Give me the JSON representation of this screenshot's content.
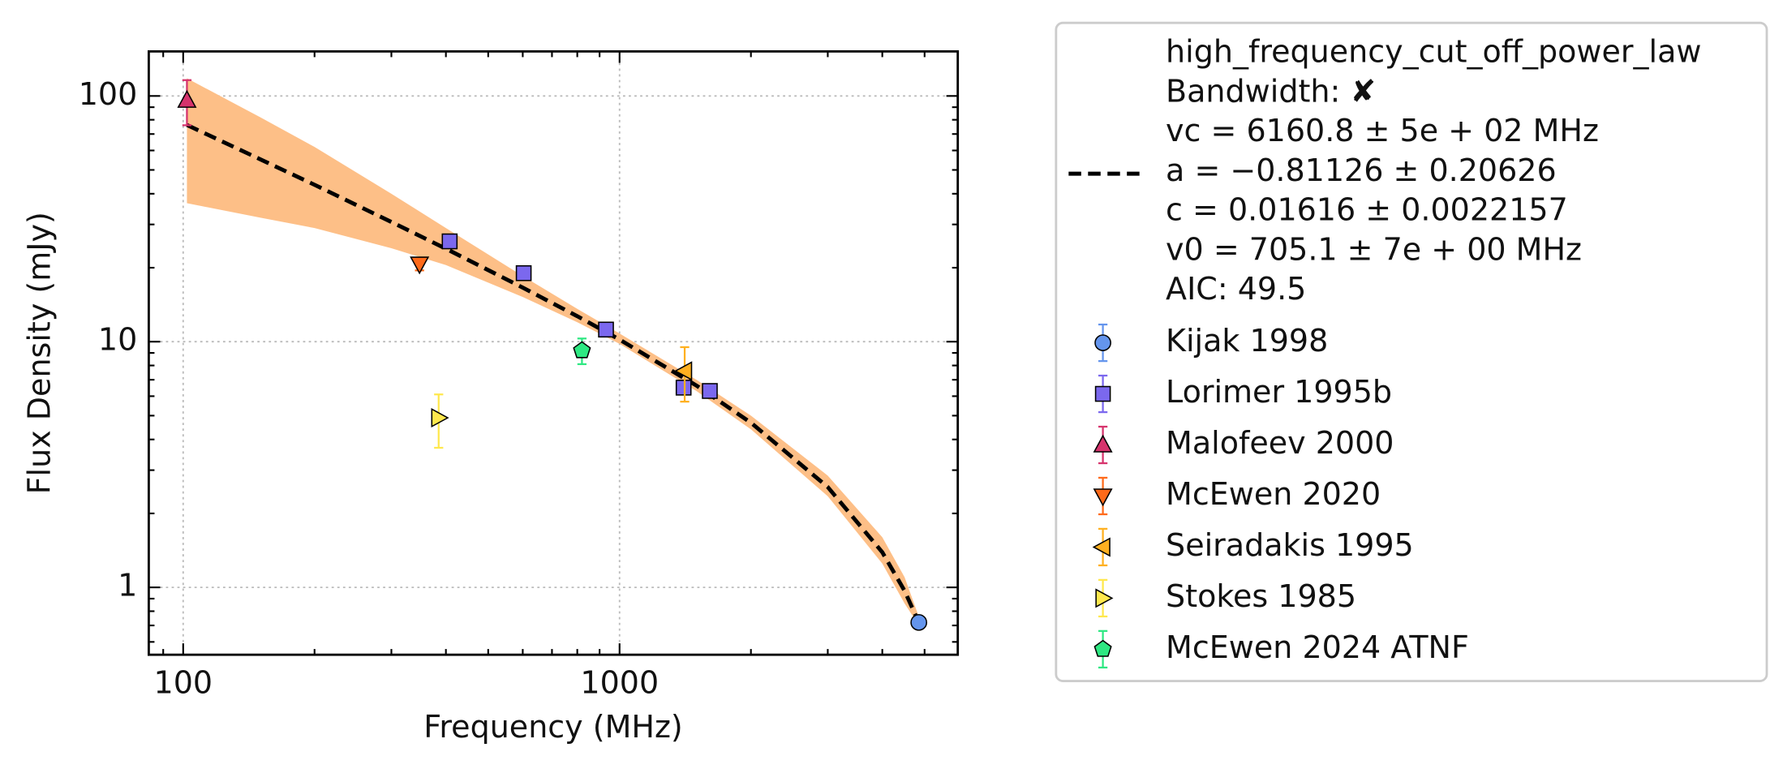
{
  "chart_data": {
    "type": "scatter",
    "xlabel": "Frequency (MHz)",
    "ylabel": "Flux Density (mJy)",
    "xscale": "log",
    "yscale": "log",
    "xlim": [
      83.4,
      5957
    ],
    "ylim": [
      0.532,
      151.8
    ],
    "xticks": [
      100,
      1000
    ],
    "yticks": [
      1,
      10,
      100
    ],
    "xminorticks": [
      90,
      200,
      300,
      400,
      500,
      600,
      700,
      800,
      900,
      2000,
      3000,
      4000,
      5000
    ],
    "yminorticks": [
      0.6,
      0.7,
      0.8,
      0.9,
      2,
      3,
      4,
      5,
      6,
      7,
      8,
      9,
      20,
      30,
      40,
      50,
      60,
      70,
      80,
      90
    ],
    "grid": true,
    "legend": "outside right",
    "fit": {
      "name": [
        "high_frequency_cut_off_power_law",
        "Bandwidth: ✘",
        "vc = 6160.8 ± 5e + 02 MHz",
        "a = −0.81126 ± 0.20626",
        "c = 0.01616 ± 0.0022157",
        "v0 = 705.1 ± 7e + 00 MHz",
        "AIC: 49.5"
      ],
      "color": "#000000",
      "band_color": "#fdbf87",
      "x": [
        102,
        150,
        200,
        300,
        400,
        600,
        800,
        1000,
        1500,
        2000,
        3000,
        4000,
        4500,
        4850
      ],
      "values": [
        76.2,
        55.3,
        43.5,
        30.7,
        23.9,
        16.6,
        12.7,
        10.2,
        6.63,
        4.68,
        2.56,
        1.39,
        0.968,
        0.72
      ],
      "lower": [
        36.6,
        32,
        29,
        24,
        20.5,
        15.2,
        12.0,
        9.8,
        6.3,
        4.4,
        2.35,
        1.25,
        0.86,
        0.7
      ],
      "upper": [
        118,
        82,
        62,
        40,
        29,
        18.5,
        13.6,
        10.8,
        7.0,
        5.0,
        2.85,
        1.6,
        1.1,
        0.76
      ]
    },
    "series": [
      {
        "name": "Kijak 1998",
        "color": "#6495ed",
        "marker": "circle",
        "x": [
          4850
        ],
        "values": [
          0.72
        ],
        "errors": [
          0.03
        ]
      },
      {
        "name": "Lorimer 1995b",
        "color": "#7b68ee",
        "marker": "square",
        "x": [
          408,
          603,
          931,
          1402,
          1610
        ],
        "values": [
          25.6,
          19.0,
          11.2,
          6.5,
          6.3
        ],
        "errors": [
          1.0,
          0.8,
          0.5,
          0.3,
          0.3
        ]
      },
      {
        "name": "Malofeev 2000",
        "color": "#d6336c",
        "marker": "triangle-up",
        "x": [
          102
        ],
        "values": [
          96
        ],
        "errors": [
          20
        ]
      },
      {
        "name": "McEwen 2020",
        "color": "#ff6a1a",
        "marker": "triangle-down",
        "x": [
          348
        ],
        "values": [
          20.7
        ],
        "errors": [
          1.2
        ]
      },
      {
        "name": "Seiradakis 1995",
        "color": "#ffb020",
        "marker": "triangle-left",
        "x": [
          1410
        ],
        "values": [
          7.6
        ],
        "errors": [
          1.9
        ]
      },
      {
        "name": "Stokes 1985",
        "color": "#ffe84d",
        "marker": "triangle-right",
        "x": [
          385
        ],
        "values": [
          4.9
        ],
        "errors": [
          1.2
        ]
      },
      {
        "name": "McEwen 2024 ATNF",
        "color": "#2ee882",
        "marker": "pentagon",
        "x": [
          820
        ],
        "values": [
          9.2
        ],
        "errors": [
          1.1
        ]
      }
    ]
  }
}
